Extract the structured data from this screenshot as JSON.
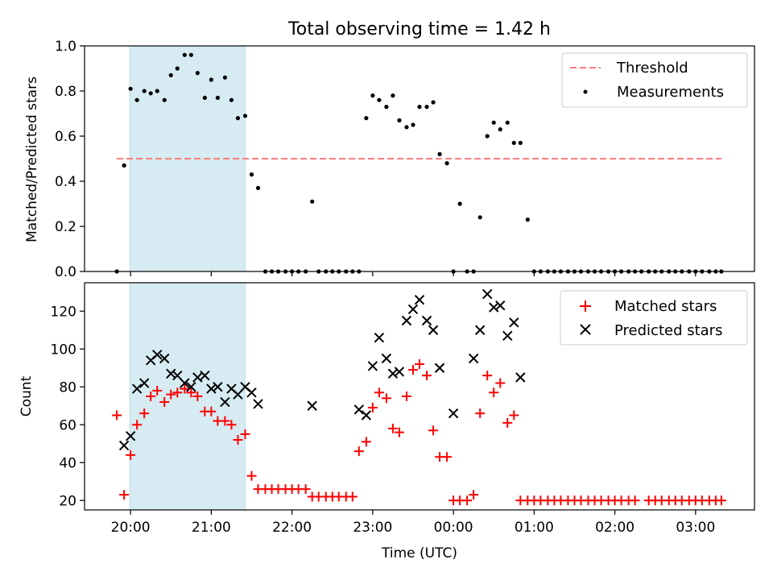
{
  "figure": {
    "title": "Total observing time = 1.42 h"
  },
  "chart_data": [
    {
      "type": "scatter",
      "ylabel": "Matched/Predicted stars",
      "xlabel": "",
      "ylim": [
        0,
        1.0
      ],
      "yticks": [
        0.0,
        0.2,
        0.4,
        0.6,
        0.8,
        1.0
      ],
      "ytick_labels": [
        "0.0",
        "0.2",
        "0.4",
        "0.6",
        "0.8",
        "1.0"
      ],
      "xlim_hours": [
        19.43,
        27.73
      ],
      "legend_position": "top-right",
      "shaded_interval_hours": [
        19.99,
        21.42
      ],
      "shade_color": "#add8e6",
      "threshold": {
        "name": "Threshold",
        "value": 0.5,
        "x_range_hours": [
          19.83,
          27.32
        ],
        "color": "#ff7f7f"
      },
      "series": [
        {
          "name": "Measurements",
          "color": "#000000",
          "marker": "dot",
          "x_hours": [
            19.83,
            19.92,
            20.0,
            20.08,
            20.17,
            20.25,
            20.33,
            20.42,
            20.5,
            20.58,
            20.67,
            20.75,
            20.83,
            20.92,
            21.0,
            21.08,
            21.17,
            21.25,
            21.33,
            21.42,
            21.5,
            21.58,
            21.67,
            21.75,
            21.83,
            21.92,
            22.0,
            22.08,
            22.17,
            22.25,
            22.33,
            22.42,
            22.5,
            22.58,
            22.67,
            22.75,
            22.83,
            22.92,
            23.0,
            23.08,
            23.17,
            23.25,
            23.33,
            23.42,
            23.5,
            23.58,
            23.67,
            23.75,
            23.83,
            23.92,
            24.0,
            24.08,
            24.17,
            24.25,
            24.33,
            24.42,
            24.5,
            24.58,
            24.67,
            24.75,
            24.83,
            24.92,
            25.0,
            25.08,
            25.17,
            25.25,
            25.33,
            25.42,
            25.5,
            25.58,
            25.67,
            25.75,
            25.83,
            25.92,
            26.0,
            26.08,
            26.17,
            26.25,
            26.33,
            26.42,
            26.5,
            26.58,
            26.67,
            26.75,
            26.83,
            26.92,
            27.0,
            27.08,
            27.17,
            27.25,
            27.32
          ],
          "y": [
            0.0,
            0.47,
            0.81,
            0.76,
            0.8,
            0.79,
            0.8,
            0.76,
            0.87,
            0.9,
            0.96,
            0.96,
            0.88,
            0.77,
            0.85,
            0.77,
            0.86,
            0.76,
            0.68,
            0.69,
            0.43,
            0.37,
            0.0,
            0.0,
            0.0,
            0.0,
            0.0,
            0.0,
            0.0,
            0.31,
            0.0,
            0.0,
            0.0,
            0.0,
            0.0,
            0.0,
            0.0,
            0.68,
            0.78,
            0.76,
            0.73,
            0.78,
            0.67,
            0.64,
            0.65,
            0.73,
            0.73,
            0.75,
            0.52,
            0.48,
            0.0,
            0.3,
            0.0,
            0.0,
            0.24,
            0.6,
            0.66,
            0.63,
            0.66,
            0.57,
            0.57,
            0.23,
            0.0,
            0.0,
            0.0,
            0.0,
            0.0,
            0.0,
            0.0,
            0.0,
            0.0,
            0.0,
            0.0,
            0.0,
            0.0,
            0.0,
            0.0,
            0.0,
            0.0,
            0.0,
            0.0,
            0.0,
            0.0,
            0.0,
            0.0,
            0.0,
            0.0,
            0.0,
            0.0,
            0.0,
            0.0
          ]
        }
      ]
    },
    {
      "type": "scatter",
      "ylabel": "Count",
      "xlabel": "Time (UTC)",
      "ylim": [
        15,
        135
      ],
      "yticks": [
        20,
        40,
        60,
        80,
        100,
        120
      ],
      "ytick_labels": [
        "20",
        "40",
        "60",
        "80",
        "100",
        "120"
      ],
      "xlim_hours": [
        19.43,
        27.73
      ],
      "xticks_hours": [
        20,
        21,
        22,
        23,
        24,
        25,
        26,
        27
      ],
      "xtick_labels": [
        "20:00",
        "21:00",
        "22:00",
        "23:00",
        "00:00",
        "01:00",
        "02:00",
        "03:00"
      ],
      "legend_position": "top-right",
      "shaded_interval_hours": [
        19.99,
        21.42
      ],
      "shade_color": "#add8e6",
      "series": [
        {
          "name": "Matched stars",
          "color": "#ff0000",
          "marker": "plus",
          "points": [
            [
              19.83,
              65
            ],
            [
              19.92,
              23
            ],
            [
              20.0,
              44
            ],
            [
              20.08,
              60
            ],
            [
              20.17,
              66
            ],
            [
              20.25,
              75
            ],
            [
              20.33,
              78
            ],
            [
              20.42,
              72
            ],
            [
              20.5,
              76
            ],
            [
              20.58,
              77
            ],
            [
              20.67,
              79
            ],
            [
              20.75,
              77
            ],
            [
              20.83,
              75
            ],
            [
              20.92,
              67
            ],
            [
              21.0,
              67
            ],
            [
              21.08,
              62
            ],
            [
              21.17,
              62
            ],
            [
              21.25,
              60
            ],
            [
              21.33,
              52
            ],
            [
              21.42,
              55
            ],
            [
              21.5,
              33
            ],
            [
              21.58,
              26
            ],
            [
              21.67,
              26
            ],
            [
              21.75,
              26
            ],
            [
              21.83,
              26
            ],
            [
              21.92,
              26
            ],
            [
              22.0,
              26
            ],
            [
              22.08,
              26
            ],
            [
              22.17,
              26
            ],
            [
              22.25,
              22
            ],
            [
              22.33,
              22
            ],
            [
              22.42,
              22
            ],
            [
              22.5,
              22
            ],
            [
              22.58,
              22
            ],
            [
              22.67,
              22
            ],
            [
              22.75,
              22
            ],
            [
              22.83,
              46
            ],
            [
              22.92,
              51
            ],
            [
              23.0,
              69
            ],
            [
              23.08,
              77
            ],
            [
              23.17,
              74
            ],
            [
              23.25,
              58
            ],
            [
              23.33,
              56
            ],
            [
              23.42,
              75
            ],
            [
              23.5,
              89
            ],
            [
              23.58,
              92
            ],
            [
              23.67,
              86
            ],
            [
              23.75,
              57
            ],
            [
              23.83,
              43
            ],
            [
              23.92,
              43
            ],
            [
              24.0,
              20
            ],
            [
              24.08,
              20
            ],
            [
              24.17,
              20
            ],
            [
              24.25,
              23
            ],
            [
              24.33,
              66
            ],
            [
              24.42,
              86
            ],
            [
              24.5,
              77
            ],
            [
              24.58,
              82
            ],
            [
              24.67,
              61
            ],
            [
              24.75,
              65
            ],
            [
              24.83,
              20
            ],
            [
              24.92,
              20
            ],
            [
              25.0,
              20
            ],
            [
              25.08,
              20
            ],
            [
              25.17,
              20
            ],
            [
              25.25,
              20
            ],
            [
              25.33,
              20
            ],
            [
              25.42,
              20
            ],
            [
              25.5,
              20
            ],
            [
              25.58,
              20
            ],
            [
              25.67,
              20
            ],
            [
              25.75,
              20
            ],
            [
              25.83,
              20
            ],
            [
              25.92,
              20
            ],
            [
              26.0,
              20
            ],
            [
              26.08,
              20
            ],
            [
              26.17,
              20
            ],
            [
              26.25,
              20
            ],
            [
              26.42,
              20
            ],
            [
              26.5,
              20
            ],
            [
              26.58,
              20
            ],
            [
              26.67,
              20
            ],
            [
              26.75,
              20
            ],
            [
              26.83,
              20
            ],
            [
              26.92,
              20
            ],
            [
              27.0,
              20
            ],
            [
              27.08,
              20
            ],
            [
              27.17,
              20
            ],
            [
              27.25,
              20
            ],
            [
              27.32,
              20
            ]
          ]
        },
        {
          "name": "Predicted stars",
          "color": "#000000",
          "marker": "x",
          "points": [
            [
              19.92,
              49
            ],
            [
              20.0,
              54
            ],
            [
              20.08,
              79
            ],
            [
              20.17,
              82
            ],
            [
              20.25,
              94
            ],
            [
              20.33,
              97
            ],
            [
              20.42,
              95
            ],
            [
              20.5,
              87
            ],
            [
              20.58,
              86
            ],
            [
              20.67,
              82
            ],
            [
              20.75,
              80
            ],
            [
              20.83,
              85
            ],
            [
              20.92,
              86
            ],
            [
              21.0,
              79
            ],
            [
              21.08,
              80
            ],
            [
              21.17,
              72
            ],
            [
              21.25,
              79
            ],
            [
              21.33,
              76
            ],
            [
              21.42,
              80
            ],
            [
              21.5,
              77
            ],
            [
              21.58,
              71
            ],
            [
              22.25,
              70
            ],
            [
              22.83,
              68
            ],
            [
              22.92,
              65
            ],
            [
              23.0,
              91
            ],
            [
              23.08,
              106
            ],
            [
              23.17,
              95
            ],
            [
              23.25,
              87
            ],
            [
              23.33,
              88
            ],
            [
              23.42,
              115
            ],
            [
              23.5,
              121
            ],
            [
              23.58,
              126
            ],
            [
              23.67,
              115
            ],
            [
              23.75,
              110
            ],
            [
              23.83,
              90
            ],
            [
              24.0,
              66
            ],
            [
              24.25,
              95
            ],
            [
              24.33,
              110
            ],
            [
              24.42,
              129
            ],
            [
              24.5,
              122
            ],
            [
              24.58,
              123
            ],
            [
              24.67,
              107
            ],
            [
              24.75,
              114
            ],
            [
              24.83,
              85
            ]
          ]
        }
      ]
    }
  ]
}
